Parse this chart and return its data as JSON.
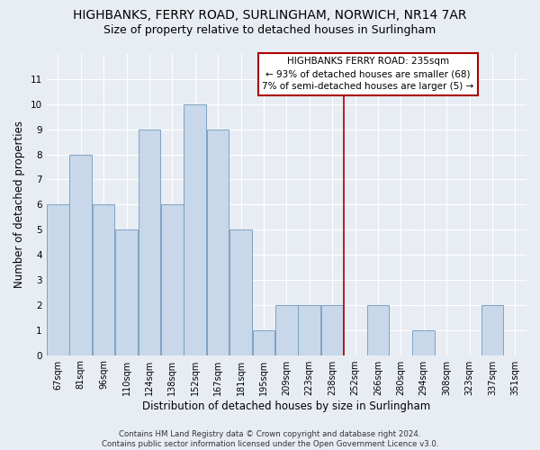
{
  "title": "HIGHBANKS, FERRY ROAD, SURLINGHAM, NORWICH, NR14 7AR",
  "subtitle": "Size of property relative to detached houses in Surlingham",
  "xlabel": "Distribution of detached houses by size in Surlingham",
  "ylabel": "Number of detached properties",
  "footer": "Contains HM Land Registry data © Crown copyright and database right 2024.\nContains public sector information licensed under the Open Government Licence v3.0.",
  "categories": [
    "67sqm",
    "81sqm",
    "96sqm",
    "110sqm",
    "124sqm",
    "138sqm",
    "152sqm",
    "167sqm",
    "181sqm",
    "195sqm",
    "209sqm",
    "223sqm",
    "238sqm",
    "252sqm",
    "266sqm",
    "280sqm",
    "294sqm",
    "308sqm",
    "323sqm",
    "337sqm",
    "351sqm"
  ],
  "values": [
    6,
    8,
    6,
    5,
    9,
    6,
    10,
    9,
    5,
    1,
    2,
    2,
    2,
    0,
    2,
    0,
    1,
    0,
    0,
    2,
    0
  ],
  "bar_color": "#c8d8ea",
  "bar_edge_color": "#7099bb",
  "red_line_color": "#aa0000",
  "annotation_title": "HIGHBANKS FERRY ROAD: 235sqm",
  "annotation_line1": "← 93% of detached houses are smaller (68)",
  "annotation_line2": "7% of semi-detached houses are larger (5) →",
  "ylim": [
    0,
    12
  ],
  "yticks": [
    0,
    1,
    2,
    3,
    4,
    5,
    6,
    7,
    8,
    9,
    10,
    11
  ],
  "background_color": "#e8edf4",
  "grid_color": "#d8dde8",
  "title_fontsize": 10,
  "subtitle_fontsize": 9,
  "axis_label_fontsize": 8.5,
  "tick_fontsize": 7,
  "red_line_index": 12
}
